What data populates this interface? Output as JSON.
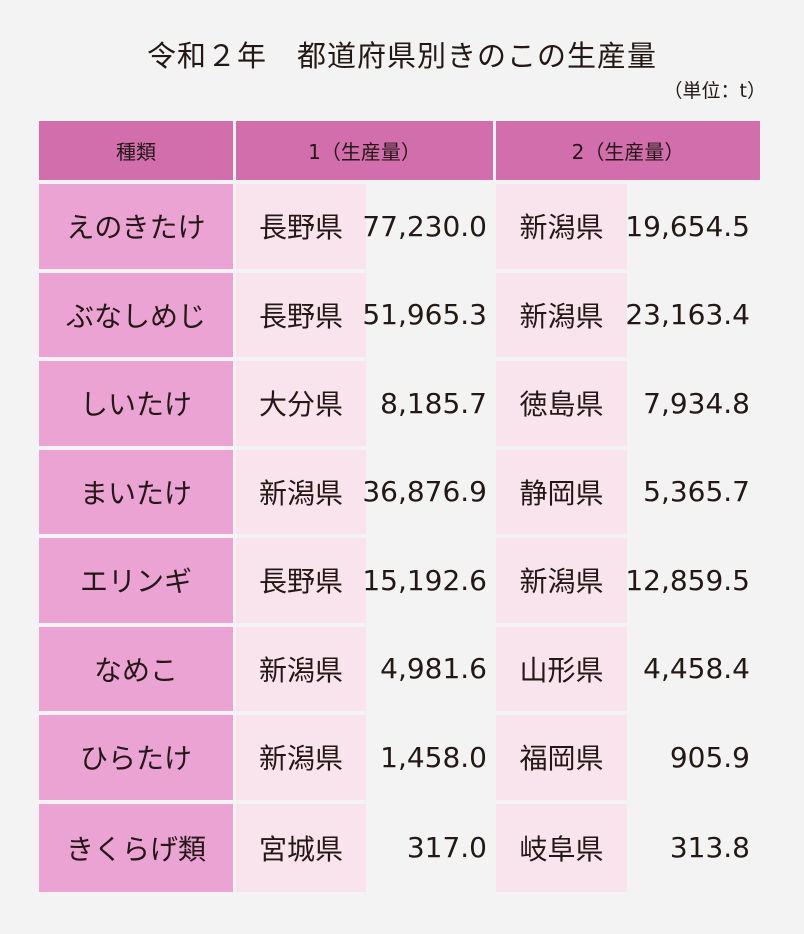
{
  "title": "令和２年　都道府県別きのこの生産量",
  "unit": "（単位：t）",
  "headers": {
    "kind": "種類",
    "rank1": "1（生産量）",
    "rank2": "2（生産量）"
  },
  "rows": [
    {
      "kind": "えのきたけ",
      "pref1": "長野県",
      "val1": "77,230.0",
      "pref2": "新潟県",
      "val2": "19,654.5"
    },
    {
      "kind": "ぶなしめじ",
      "pref1": "長野県",
      "val1": "51,965.3",
      "pref2": "新潟県",
      "val2": "23,163.4"
    },
    {
      "kind": "しいたけ",
      "pref1": "大分県",
      "val1": "8,185.7",
      "pref2": "徳島県",
      "val2": "7,934.8"
    },
    {
      "kind": "まいたけ",
      "pref1": "新潟県",
      "val1": "36,876.9",
      "pref2": "静岡県",
      "val2": "5,365.7"
    },
    {
      "kind": "エリンギ",
      "pref1": "長野県",
      "val1": "15,192.6",
      "pref2": "新潟県",
      "val2": "12,859.5"
    },
    {
      "kind": "なめこ",
      "pref1": "新潟県",
      "val1": "4,981.6",
      "pref2": "山形県",
      "val2": "4,458.4"
    },
    {
      "kind": "ひらたけ",
      "pref1": "新潟県",
      "val1": "1,458.0",
      "pref2": "福岡県",
      "val2": "905.9"
    },
    {
      "kind": "きくらげ類",
      "pref1": "宮城県",
      "val1": "317.0",
      "pref2": "岐阜県",
      "val2": "313.8"
    }
  ]
}
